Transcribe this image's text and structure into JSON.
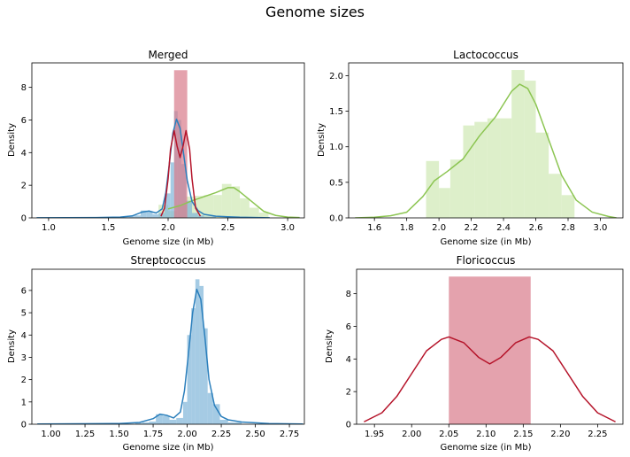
{
  "figure": {
    "title": "Genome sizes"
  },
  "colors": {
    "blue": "#2b7fbc",
    "blue_fill": "#7fb5d8",
    "green": "#8cc552",
    "green_fill": "#cfe8b4",
    "red": "#b5142a",
    "red_fill": "#d87a8a"
  },
  "chart_data": [
    {
      "type": "histogram+kde",
      "title": "Merged",
      "xlabel": "Genome size (in Mb)",
      "ylabel": "Density",
      "xlim": [
        0.86,
        3.14
      ],
      "ylim": [
        0,
        9.5
      ],
      "xticks": [
        "1.0",
        "1.5",
        "2.0",
        "2.5",
        "3.0"
      ],
      "yticks": [
        "0",
        "2",
        "4",
        "6",
        "8"
      ],
      "series": [
        {
          "name": "",
          "color": "green",
          "bins": [
            [
              1.92,
              2.0,
              0.8
            ],
            [
              2.0,
              2.07,
              0.42
            ],
            [
              2.07,
              2.15,
              0.82
            ],
            [
              2.15,
              2.22,
              1.3
            ],
            [
              2.22,
              2.3,
              1.35
            ],
            [
              2.3,
              2.38,
              1.4
            ],
            [
              2.38,
              2.45,
              1.4
            ],
            [
              2.45,
              2.53,
              2.08
            ],
            [
              2.53,
              2.6,
              1.93
            ],
            [
              2.6,
              2.68,
              1.2
            ],
            [
              2.68,
              2.76,
              0.62
            ],
            [
              2.76,
              2.84,
              0.32
            ]
          ],
          "kde": [
            [
              2.0,
              0.55
            ],
            [
              2.1,
              0.75
            ],
            [
              2.2,
              1.05
            ],
            [
              2.3,
              1.3
            ],
            [
              2.4,
              1.55
            ],
            [
              2.5,
              1.85
            ],
            [
              2.55,
              1.85
            ],
            [
              2.6,
              1.6
            ],
            [
              2.7,
              1.0
            ],
            [
              2.8,
              0.4
            ],
            [
              2.9,
              0.15
            ],
            [
              3.0,
              0.05
            ],
            [
              3.1,
              0.02
            ]
          ]
        },
        {
          "name": "",
          "color": "blue",
          "bins": [
            [
              1.62,
              1.67,
              0.05
            ],
            [
              1.67,
              1.72,
              0.1
            ],
            [
              1.72,
              1.77,
              0.15
            ],
            [
              1.77,
              1.82,
              0.45
            ],
            [
              1.82,
              1.87,
              0.38
            ],
            [
              1.87,
              1.92,
              0.22
            ],
            [
              1.92,
              1.97,
              0.3
            ],
            [
              1.97,
              2.02,
              1.5
            ],
            [
              2.02,
              2.05,
              3.4
            ],
            [
              2.05,
              2.08,
              6.55
            ],
            [
              2.08,
              2.11,
              6.0
            ],
            [
              2.11,
              2.15,
              3.3
            ],
            [
              2.15,
              2.2,
              1.05
            ],
            [
              2.2,
              2.25,
              0.3
            ],
            [
              2.25,
              2.3,
              0.15
            ],
            [
              2.3,
              2.4,
              0.08
            ]
          ],
          "kde": [
            [
              0.9,
              0.01
            ],
            [
              1.4,
              0.02
            ],
            [
              1.6,
              0.05
            ],
            [
              1.7,
              0.12
            ],
            [
              1.78,
              0.35
            ],
            [
              1.84,
              0.42
            ],
            [
              1.9,
              0.3
            ],
            [
              1.95,
              0.55
            ],
            [
              1.98,
              1.5
            ],
            [
              2.01,
              3.3
            ],
            [
              2.04,
              5.2
            ],
            [
              2.07,
              6.05
            ],
            [
              2.1,
              5.5
            ],
            [
              2.13,
              3.9
            ],
            [
              2.16,
              2.3
            ],
            [
              2.2,
              1.0
            ],
            [
              2.25,
              0.45
            ],
            [
              2.3,
              0.22
            ],
            [
              2.4,
              0.1
            ],
            [
              2.6,
              0.04
            ],
            [
              2.85,
              0.01
            ]
          ]
        },
        {
          "name": "",
          "color": "red",
          "bins": [
            [
              2.05,
              2.16,
              9.05
            ]
          ],
          "kde": [
            [
              1.94,
              0.1
            ],
            [
              1.97,
              0.6
            ],
            [
              2.0,
              2.4
            ],
            [
              2.02,
              4.2
            ],
            [
              2.05,
              5.35
            ],
            [
              2.075,
              4.4
            ],
            [
              2.1,
              3.7
            ],
            [
              2.125,
              4.4
            ],
            [
              2.15,
              5.35
            ],
            [
              2.18,
              4.2
            ],
            [
              2.2,
              2.4
            ],
            [
              2.23,
              0.6
            ],
            [
              2.27,
              0.1
            ]
          ]
        }
      ]
    },
    {
      "type": "histogram+kde",
      "title": "Lactococcus",
      "xlabel": "Genome size (in Mb)",
      "ylabel": "Density",
      "xlim": [
        1.44,
        3.14
      ],
      "ylim": [
        0,
        2.18
      ],
      "xticks": [
        "1.6",
        "1.8",
        "2.0",
        "2.2",
        "2.4",
        "2.6",
        "2.8",
        "3.0"
      ],
      "yticks": [
        "0.0",
        "0.5",
        "1.0",
        "1.5",
        "2.0"
      ],
      "series": [
        {
          "name": "",
          "color": "green",
          "bins": [
            [
              1.92,
              2.0,
              0.8
            ],
            [
              2.0,
              2.07,
              0.42
            ],
            [
              2.07,
              2.15,
              0.82
            ],
            [
              2.15,
              2.22,
              1.3
            ],
            [
              2.22,
              2.3,
              1.35
            ],
            [
              2.3,
              2.38,
              1.4
            ],
            [
              2.38,
              2.45,
              1.4
            ],
            [
              2.45,
              2.53,
              2.08
            ],
            [
              2.53,
              2.6,
              1.93
            ],
            [
              2.6,
              2.68,
              1.2
            ],
            [
              2.68,
              2.76,
              0.62
            ],
            [
              2.76,
              2.84,
              0.32
            ]
          ],
          "kde": [
            [
              1.48,
              0.0
            ],
            [
              1.6,
              0.01
            ],
            [
              1.7,
              0.03
            ],
            [
              1.8,
              0.08
            ],
            [
              1.9,
              0.3
            ],
            [
              1.97,
              0.52
            ],
            [
              2.05,
              0.65
            ],
            [
              2.15,
              0.83
            ],
            [
              2.25,
              1.15
            ],
            [
              2.35,
              1.42
            ],
            [
              2.45,
              1.78
            ],
            [
              2.5,
              1.88
            ],
            [
              2.55,
              1.82
            ],
            [
              2.6,
              1.6
            ],
            [
              2.68,
              1.1
            ],
            [
              2.76,
              0.6
            ],
            [
              2.85,
              0.25
            ],
            [
              2.95,
              0.08
            ],
            [
              3.05,
              0.02
            ],
            [
              3.1,
              0.0
            ]
          ]
        }
      ]
    },
    {
      "type": "histogram+kde",
      "title": "Streptococcus",
      "xlabel": "Genome size (in Mb)",
      "ylabel": "Density",
      "xlim": [
        0.86,
        2.86
      ],
      "ylim": [
        0,
        6.95
      ],
      "xticks": [
        "1.00",
        "1.25",
        "1.50",
        "1.75",
        "2.00",
        "2.25",
        "2.50",
        "2.75"
      ],
      "yticks": [
        "0",
        "1",
        "2",
        "3",
        "4",
        "5",
        "6"
      ],
      "series": [
        {
          "name": "",
          "color": "blue",
          "bins": [
            [
              1.62,
              1.67,
              0.05
            ],
            [
              1.67,
              1.72,
              0.08
            ],
            [
              1.72,
              1.77,
              0.12
            ],
            [
              1.77,
              1.82,
              0.45
            ],
            [
              1.82,
              1.87,
              0.38
            ],
            [
              1.87,
              1.92,
              0.2
            ],
            [
              1.92,
              1.97,
              0.28
            ],
            [
              1.97,
              2.0,
              1.0
            ],
            [
              2.0,
              2.03,
              4.0
            ],
            [
              2.03,
              2.06,
              5.2
            ],
            [
              2.06,
              2.09,
              6.5
            ],
            [
              2.09,
              2.12,
              6.2
            ],
            [
              2.12,
              2.15,
              4.3
            ],
            [
              2.15,
              2.19,
              1.4
            ],
            [
              2.19,
              2.24,
              0.9
            ],
            [
              2.24,
              2.3,
              0.2
            ],
            [
              2.3,
              2.4,
              0.08
            ]
          ],
          "kde": [
            [
              0.9,
              0.01
            ],
            [
              1.2,
              0.02
            ],
            [
              1.5,
              0.03
            ],
            [
              1.65,
              0.08
            ],
            [
              1.75,
              0.25
            ],
            [
              1.8,
              0.45
            ],
            [
              1.85,
              0.4
            ],
            [
              1.9,
              0.28
            ],
            [
              1.95,
              0.55
            ],
            [
              1.98,
              1.5
            ],
            [
              2.01,
              3.2
            ],
            [
              2.04,
              5.0
            ],
            [
              2.07,
              6.05
            ],
            [
              2.1,
              5.6
            ],
            [
              2.13,
              3.9
            ],
            [
              2.16,
              2.0
            ],
            [
              2.2,
              0.85
            ],
            [
              2.25,
              0.35
            ],
            [
              2.3,
              0.2
            ],
            [
              2.4,
              0.1
            ],
            [
              2.6,
              0.03
            ],
            [
              2.85,
              0.01
            ]
          ]
        }
      ]
    },
    {
      "type": "histogram+kde",
      "title": "Floricoccus",
      "xlabel": "Genome size (in Mb)",
      "ylabel": "Density",
      "xlim": [
        1.926,
        2.284
      ],
      "ylim": [
        0,
        9.5
      ],
      "xticks": [
        "1.95",
        "2.00",
        "2.05",
        "2.10",
        "2.15",
        "2.20",
        "2.25"
      ],
      "yticks": [
        "0",
        "2",
        "4",
        "6",
        "8"
      ],
      "series": [
        {
          "name": "",
          "color": "red",
          "bins": [
            [
              2.05,
              2.16,
              9.05
            ]
          ],
          "kde": [
            [
              1.936,
              0.15
            ],
            [
              1.96,
              0.7
            ],
            [
              1.98,
              1.7
            ],
            [
              2.0,
              3.1
            ],
            [
              2.02,
              4.5
            ],
            [
              2.04,
              5.2
            ],
            [
              2.05,
              5.35
            ],
            [
              2.07,
              5.0
            ],
            [
              2.09,
              4.1
            ],
            [
              2.105,
              3.7
            ],
            [
              2.12,
              4.1
            ],
            [
              2.14,
              5.0
            ],
            [
              2.158,
              5.35
            ],
            [
              2.17,
              5.2
            ],
            [
              2.19,
              4.5
            ],
            [
              2.21,
              3.1
            ],
            [
              2.23,
              1.7
            ],
            [
              2.25,
              0.7
            ],
            [
              2.274,
              0.15
            ]
          ]
        }
      ]
    }
  ]
}
